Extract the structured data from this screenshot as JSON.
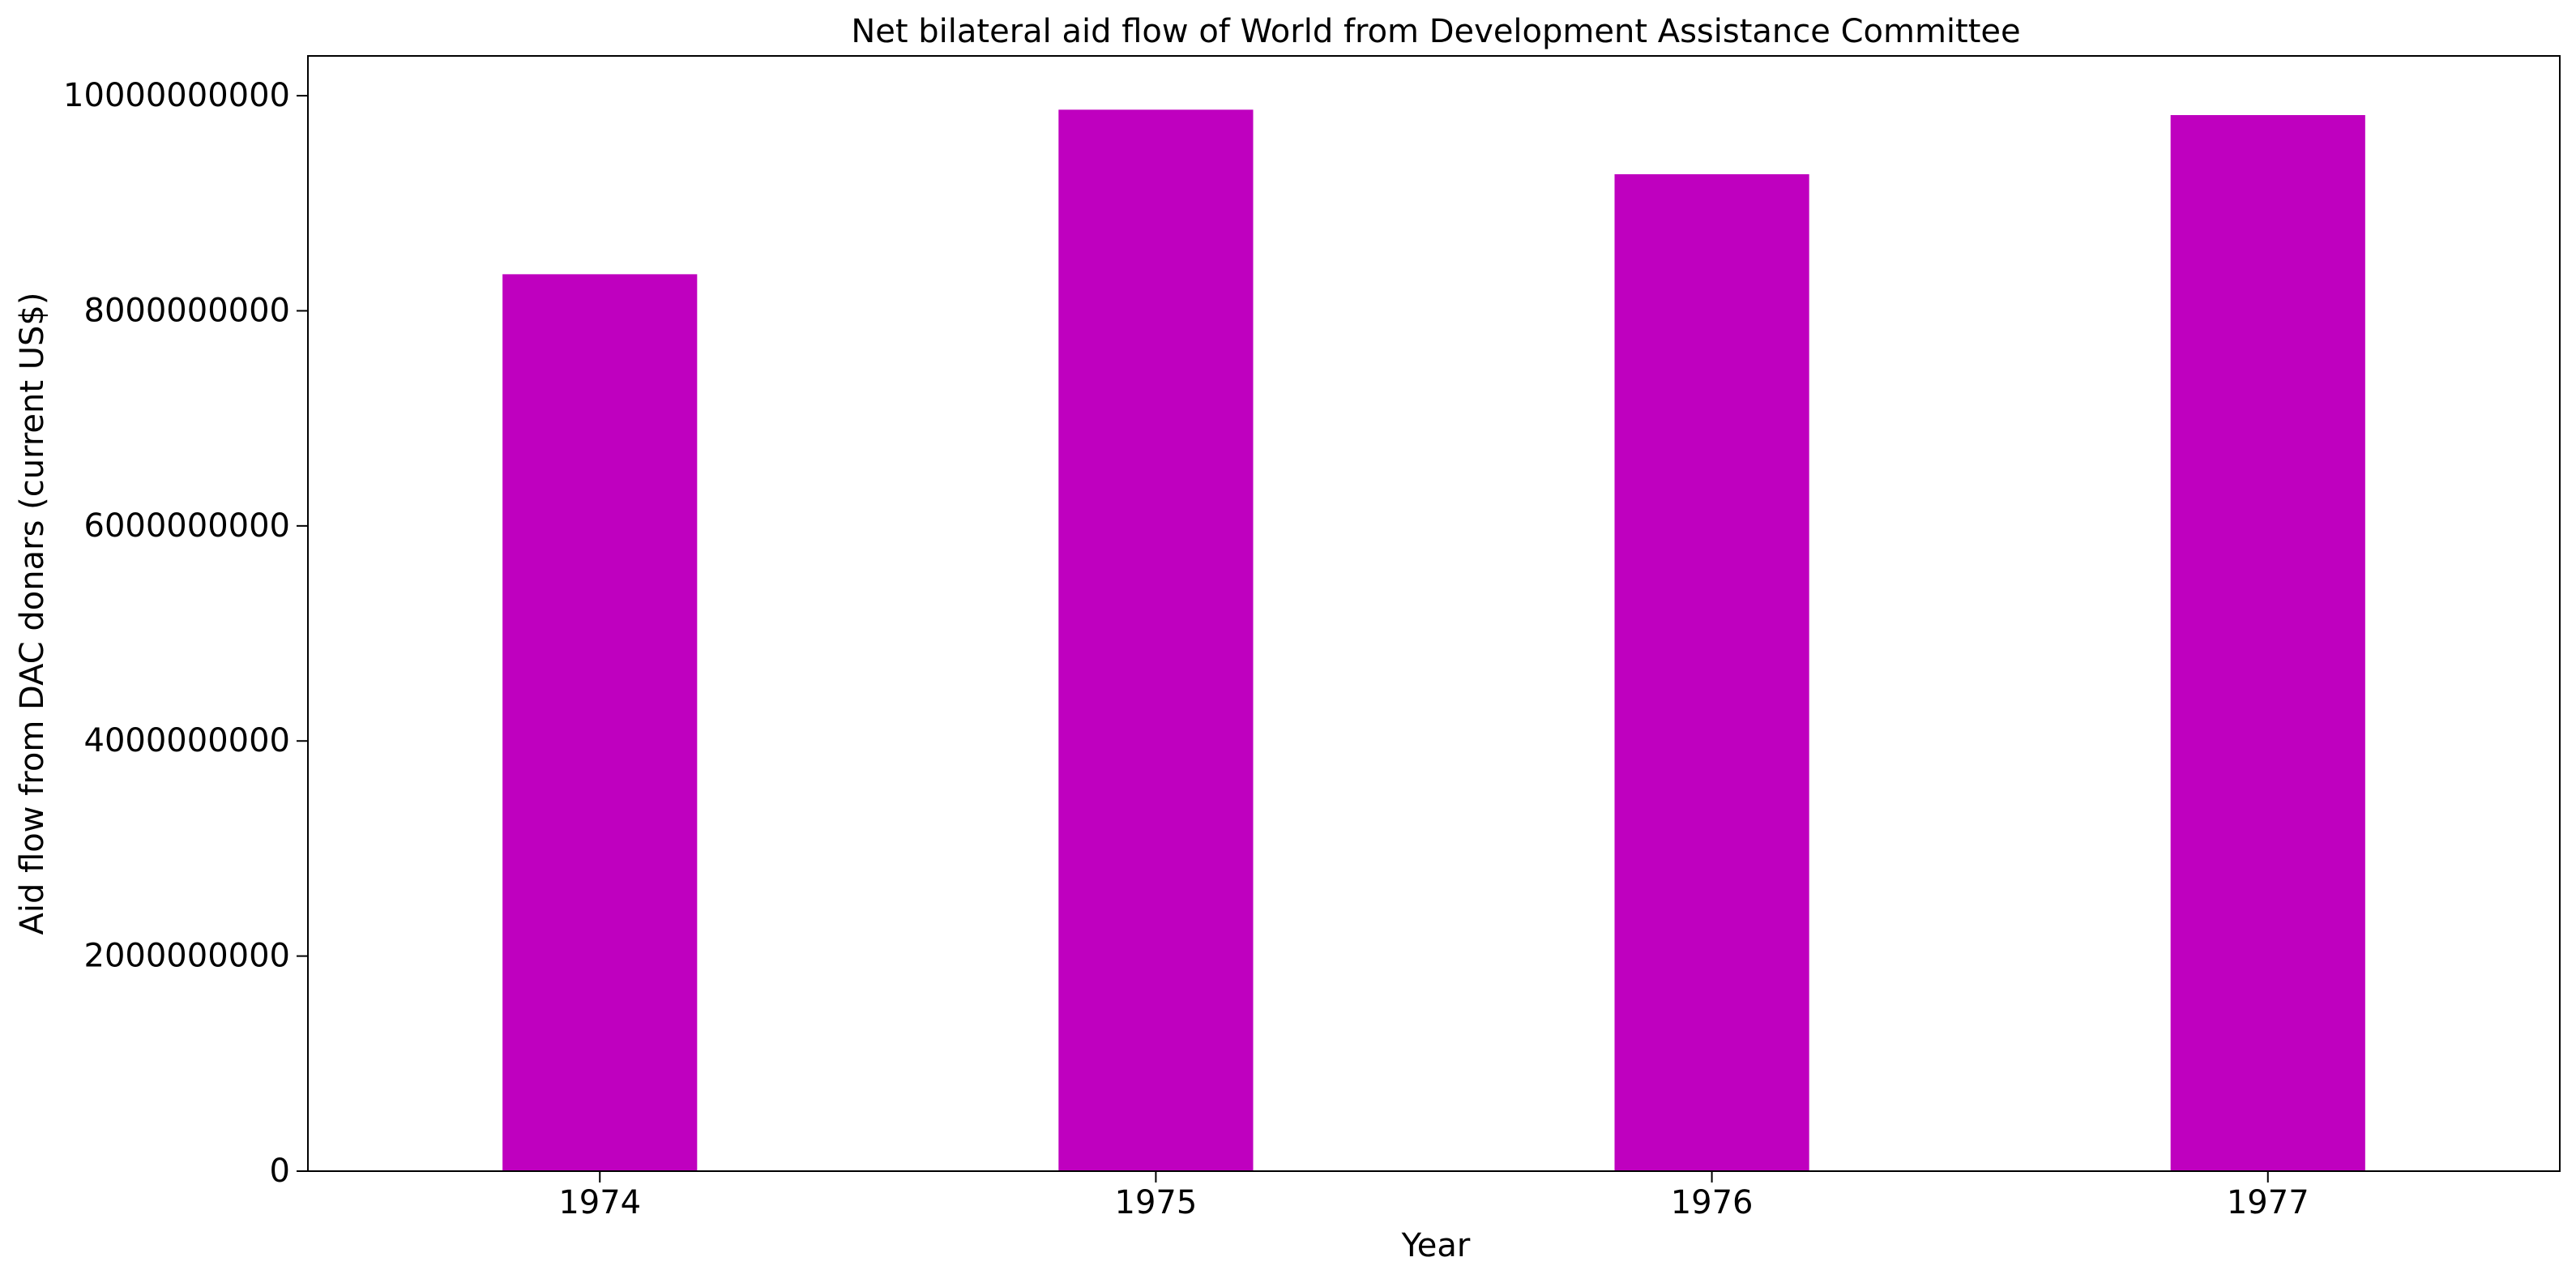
{
  "chart_data": {
    "type": "bar",
    "title": "Net bilateral aid flow of World from Development Assistance Committee",
    "xlabel": "Year",
    "ylabel": "Aid flow from DAC donars (current US$)",
    "categories": [
      "1974",
      "1975",
      "1976",
      "1977"
    ],
    "values": [
      8340000000,
      9870000000,
      9270000000,
      9820000000
    ],
    "ylim": [
      0,
      10370000000
    ],
    "yticks": [
      0,
      2000000000,
      4000000000,
      6000000000,
      8000000000,
      10000000000
    ],
    "ytick_labels": [
      "0",
      "2000000000",
      "4000000000",
      "6000000000",
      "8000000000",
      "10000000000"
    ],
    "bar_color": "#bf00bf",
    "grid": false,
    "legend": false
  }
}
